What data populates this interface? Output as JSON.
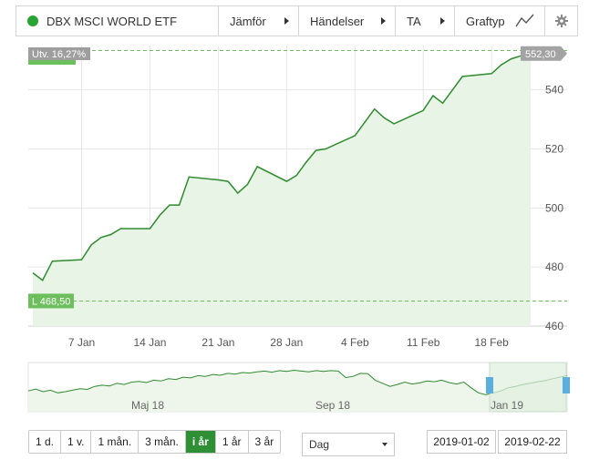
{
  "toolbar": {
    "instrument_name": "DBX MSCI WORLD ETF",
    "compare_label": "Jämför",
    "events_label": "Händelser",
    "ta_label": "TA",
    "graph_type_label": "Graftyp"
  },
  "chart_data": {
    "type": "area",
    "title": "",
    "xlabel": "",
    "ylabel": "",
    "x_ticks": [
      "7 Jan",
      "14 Jan",
      "21 Jan",
      "28 Jan",
      "4 Feb",
      "11 Feb",
      "18 Feb"
    ],
    "y_ticks": [
      "460",
      "480",
      "500",
      "520",
      "540"
    ],
    "ylim": [
      460,
      555
    ],
    "grid": true,
    "series": [
      {
        "x": [
          "2019-01-02",
          "2019-01-03",
          "2019-01-04",
          "2019-01-07",
          "2019-01-08",
          "2019-01-09",
          "2019-01-10",
          "2019-01-11",
          "2019-01-14",
          "2019-01-15",
          "2019-01-16",
          "2019-01-17",
          "2019-01-18",
          "2019-01-21",
          "2019-01-22",
          "2019-01-23",
          "2019-01-24",
          "2019-01-25",
          "2019-01-28",
          "2019-01-29",
          "2019-01-30",
          "2019-01-31",
          "2019-02-01",
          "2019-02-04",
          "2019-02-05",
          "2019-02-06",
          "2019-02-07",
          "2019-02-08",
          "2019-02-11",
          "2019-02-12",
          "2019-02-13",
          "2019-02-14",
          "2019-02-15",
          "2019-02-18",
          "2019-02-19",
          "2019-02-20",
          "2019-02-21",
          "2019-02-22"
        ],
        "values": [
          478.0,
          475.5,
          482.0,
          482.5,
          487.5,
          490.0,
          491.0,
          493.0,
          493.0,
          497.5,
          501.0,
          501.0,
          510.5,
          509.5,
          509.0,
          505.0,
          508.0,
          514.0,
          509.0,
          511.0,
          515.5,
          519.5,
          520.0,
          524.5,
          529.0,
          533.5,
          530.5,
          528.5,
          533.0,
          538.0,
          535.5,
          540.0,
          544.5,
          545.5,
          548.5,
          550.5,
          551.5,
          552.3
        ]
      }
    ],
    "change_label": "Utv. 16,27%",
    "high_label": "H 553,30",
    "high_value": 553.3,
    "low_label": "L 468,50",
    "low_value": 468.5,
    "last_value_label": "552,30",
    "last_value": 552.3,
    "navigator": {
      "labels": [
        "Maj 18",
        "Sep 18",
        "Jan 19"
      ],
      "values": [
        0.4,
        0.45,
        0.38,
        0.42,
        0.35,
        0.38,
        0.42,
        0.46,
        0.44,
        0.52,
        0.55,
        0.53,
        0.6,
        0.57,
        0.63,
        0.65,
        0.62,
        0.68,
        0.66,
        0.72,
        0.7,
        0.76,
        0.74,
        0.8,
        0.78,
        0.83,
        0.81,
        0.86,
        0.84,
        0.88,
        0.87,
        0.9,
        0.92,
        0.89,
        0.93,
        0.91,
        0.94,
        0.92,
        0.9,
        0.93,
        0.91,
        0.93,
        0.92,
        0.75,
        0.78,
        0.86,
        0.85,
        0.68,
        0.6,
        0.52,
        0.57,
        0.63,
        0.58,
        0.61,
        0.66,
        0.64,
        0.68,
        0.62,
        0.58,
        0.63,
        0.48,
        0.35,
        0.3,
        0.35,
        0.4,
        0.48,
        0.52,
        0.57,
        0.6,
        0.64,
        0.67,
        0.72,
        0.76,
        0.8
      ]
    },
    "colors": {
      "line": "#2e8b2e",
      "fill": "#e8f5e6",
      "low_badge": "#6cbf5c",
      "last_badge": "#a3a3a3",
      "change_badge": "#9e9e9e",
      "navigator_fill": "#e0efe0",
      "navigator_handle": "#5aafde"
    }
  },
  "controls": {
    "periods": [
      "1 d.",
      "1 v.",
      "1 mån.",
      "3 mån.",
      "i år",
      "1 år",
      "3 år"
    ],
    "active_period": "i år",
    "interval_value": "Dag",
    "date_from": "2019-01-02",
    "date_to": "2019-02-22"
  }
}
